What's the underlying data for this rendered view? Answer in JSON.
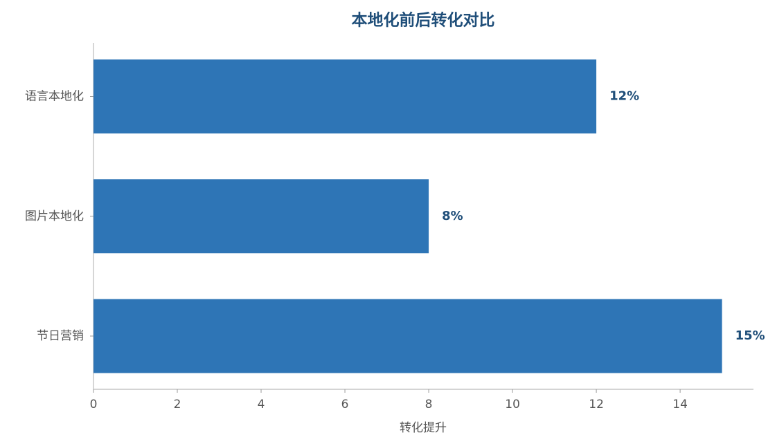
{
  "chart_data": {
    "type": "bar",
    "orientation": "horizontal",
    "title": "本地化前后转化对比",
    "x_label": "转化提升",
    "categories": [
      "语言本地化",
      "图片本地化",
      "节日营销"
    ],
    "values": [
      12,
      8,
      15
    ],
    "value_labels": [
      "12%",
      "8%",
      "15%"
    ],
    "color": "#2e75b6",
    "xlim": [
      0,
      15.75
    ],
    "xticks": [
      0,
      2,
      4,
      6,
      8,
      10,
      12,
      14
    ],
    "grid": false
  }
}
